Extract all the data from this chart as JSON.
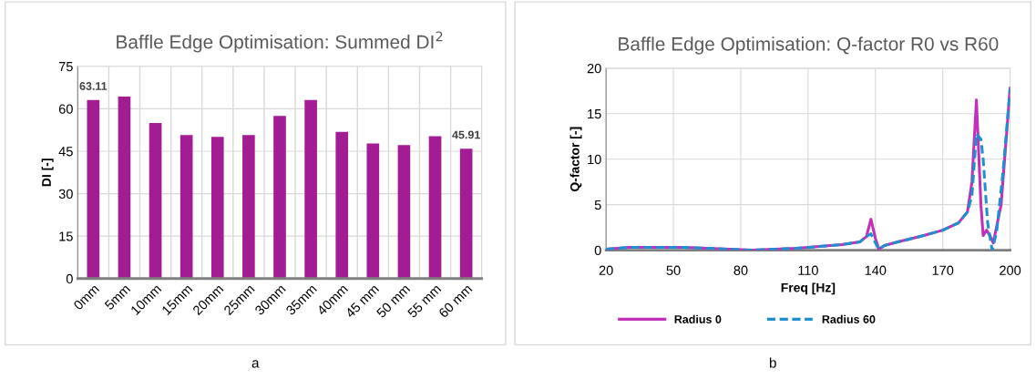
{
  "chart_data": [
    {
      "type": "bar",
      "title": "Baffle Edge Optimisation: Summed DI$^{2}$",
      "ylabel": "DI [-]",
      "categories": [
        "0mm",
        "5mm",
        "10mm",
        "15mm",
        "20mm",
        "25mm",
        "30mm",
        "35mm",
        "40mm",
        "45 mm",
        "50 mm",
        "55 mm",
        "60 mm"
      ],
      "values": [
        63.11,
        64.3,
        55.0,
        50.7,
        50.1,
        50.7,
        57.5,
        63.1,
        51.8,
        47.7,
        47.2,
        50.3,
        45.91
      ],
      "value_labels": [
        "63.11",
        null,
        null,
        null,
        null,
        null,
        null,
        null,
        null,
        null,
        null,
        null,
        "45.91"
      ],
      "color": "#a21d94",
      "ylim": [
        0,
        75
      ],
      "yticks": [
        0,
        15,
        30,
        45,
        60,
        75
      ],
      "grid": true,
      "annotations": [
        "a"
      ]
    },
    {
      "type": "line",
      "title": "Baffle Edge Optimisation: Q-factor R0 vs R60",
      "xlabel": "Freq [Hz]",
      "ylabel": "Q-factor [-]",
      "xlim": [
        20,
        200
      ],
      "xticks": [
        20,
        50,
        80,
        110,
        140,
        170,
        200
      ],
      "ylim": [
        0,
        20
      ],
      "yticks": [
        0,
        5,
        10,
        15,
        20
      ],
      "grid": true,
      "legend": "bottom",
      "annotations": [
        "b"
      ],
      "series": [
        {
          "name": "Radius 0",
          "color": "#c030b8",
          "line_style": "solid",
          "x": [
            20,
            25,
            30,
            40,
            55,
            65,
            75,
            85,
            95,
            105,
            115,
            125,
            133,
            136,
            138,
            140,
            141.5,
            144,
            150,
            160,
            170,
            177,
            181,
            183,
            185,
            187,
            188,
            189.5,
            191,
            192.5,
            196,
            200
          ],
          "values": [
            0.1,
            0.2,
            0.3,
            0.3,
            0.3,
            0.2,
            0.1,
            0.0,
            0.1,
            0.2,
            0.4,
            0.6,
            0.9,
            1.5,
            3.4,
            1.3,
            0.1,
            0.5,
            0.9,
            1.5,
            2.2,
            3.0,
            4.2,
            7.5,
            16.5,
            5.0,
            1.6,
            2.2,
            1.6,
            0.8,
            5.0,
            17.8
          ]
        },
        {
          "name": "Radius 60",
          "color": "#1e90d0",
          "line_style": "dashed",
          "x": [
            20,
            25,
            30,
            40,
            55,
            65,
            75,
            85,
            95,
            105,
            115,
            125,
            133,
            136,
            138,
            140,
            141.5,
            144,
            150,
            160,
            170,
            177,
            181,
            183,
            185,
            187,
            188,
            190,
            192,
            194,
            197,
            200
          ],
          "values": [
            0.1,
            0.2,
            0.3,
            0.3,
            0.3,
            0.2,
            0.1,
            0.0,
            0.1,
            0.2,
            0.4,
            0.6,
            0.9,
            1.5,
            1.8,
            0.8,
            0.1,
            0.5,
            0.9,
            1.5,
            2.2,
            3.0,
            4.2,
            6.0,
            12.8,
            12.2,
            10.0,
            3.0,
            0.0,
            2.0,
            9.0,
            17.8
          ]
        }
      ]
    }
  ]
}
